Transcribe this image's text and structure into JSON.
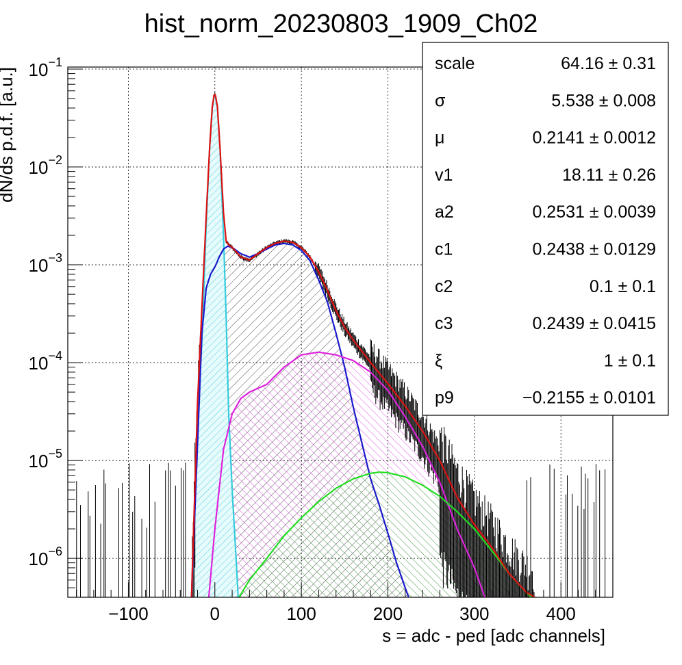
{
  "chart_data": {
    "type": "line",
    "title": "hist_norm_20230803_1909_Ch02",
    "xlabel": "s = adc - ped [adc channels]",
    "ylabel": "dN/ds p.d.f. [a.u.]",
    "xlim": [
      -170,
      460
    ],
    "ylim": [
      4e-07,
      0.105
    ],
    "yscale": "log",
    "grid": true,
    "x_ticks": [
      {
        "value": -100,
        "label": "−100"
      },
      {
        "value": 0,
        "label": "0"
      },
      {
        "value": 100,
        "label": "100"
      },
      {
        "value": 200,
        "label": "200"
      },
      {
        "value": 300,
        "label": "300"
      },
      {
        "value": 400,
        "label": "400"
      }
    ],
    "y_ticks": [
      {
        "value": 0.1,
        "base": "10",
        "exp": "−1"
      },
      {
        "value": 0.01,
        "base": "10",
        "exp": "−2"
      },
      {
        "value": 0.001,
        "base": "10",
        "exp": "−3"
      },
      {
        "value": 0.0001,
        "base": "10",
        "exp": "−4"
      },
      {
        "value": 1e-05,
        "base": "10",
        "exp": "−5"
      },
      {
        "value": 1e-06,
        "base": "10",
        "exp": "−6"
      }
    ],
    "series": [
      {
        "key": "pedestal",
        "color": "#33ccdd",
        "x": [
          -27,
          -20,
          -15,
          -10,
          -6,
          -3,
          -1,
          0,
          1,
          3,
          6,
          10,
          13,
          16,
          20,
          24,
          27
        ],
        "y": [
          4e-07,
          2.6e-05,
          0.00016,
          0.0026,
          0.016,
          0.04,
          0.052,
          0.053,
          0.05,
          0.04,
          0.015,
          0.002,
          0.0003,
          3e-05,
          5e-06,
          1.2e-06,
          4e-07
        ]
      },
      {
        "key": "one_pe",
        "color": "#1a1acc",
        "x": [
          -27,
          -20,
          -15,
          -10,
          -5,
          0,
          5,
          10,
          15,
          20,
          30,
          40,
          50,
          60,
          70,
          80,
          90,
          100,
          110,
          120,
          130,
          140,
          150,
          160,
          170,
          180,
          190,
          200,
          210,
          220,
          224
        ],
        "y": [
          4e-07,
          1.5e-05,
          0.0002,
          0.00058,
          0.0008,
          0.00095,
          0.0012,
          0.00145,
          0.00155,
          0.0015,
          0.0013,
          0.0012,
          0.0013,
          0.00145,
          0.0016,
          0.00165,
          0.0016,
          0.0014,
          0.0011,
          0.0007,
          0.00042,
          0.0002,
          9e-05,
          3.5e-05,
          1.5e-05,
          6.5e-06,
          3.5e-06,
          1.8e-06,
          9e-07,
          5e-07,
          4e-07
        ]
      },
      {
        "key": "two_pe",
        "color": "#dd22dd",
        "x": [
          -7,
          0,
          10,
          20,
          30,
          40,
          60,
          80,
          100,
          120,
          140,
          160,
          180,
          200,
          220,
          240,
          260,
          280,
          300,
          312
        ],
        "y": [
          4e-07,
          2e-06,
          1.3e-05,
          3e-05,
          4.3e-05,
          5e-05,
          6e-05,
          9e-05,
          0.00012,
          0.000128,
          0.00012,
          0.000105,
          8e-05,
          5.2e-05,
          2.8e-05,
          1.4e-05,
          6e-06,
          2e-06,
          8e-07,
          4e-07
        ]
      },
      {
        "key": "three_pe",
        "color": "#22dd22",
        "x": [
          28,
          40,
          60,
          80,
          100,
          120,
          140,
          160,
          180,
          190,
          200,
          220,
          240,
          260,
          280,
          300,
          320,
          340,
          360,
          366
        ],
        "y": [
          4e-07,
          6e-07,
          1e-06,
          1.7e-06,
          2.6e-06,
          3.8e-06,
          5.2e-06,
          6.5e-06,
          7.4e-06,
          7.6e-06,
          7.5e-06,
          6.8e-06,
          5.6e-06,
          4.3e-06,
          3e-06,
          2e-06,
          1.2e-06,
          7e-07,
          4.5e-07,
          4e-07
        ]
      },
      {
        "key": "total_fit",
        "color": "#dd1111",
        "x": [
          -27,
          -20,
          -15,
          -10,
          -6,
          -3,
          -1,
          0,
          1,
          3,
          6,
          10,
          13,
          16,
          20,
          25,
          30,
          40,
          50,
          60,
          70,
          80,
          90,
          100,
          110,
          120,
          130,
          140,
          150,
          160,
          180,
          200,
          220,
          240,
          260,
          280,
          300,
          320,
          340,
          360,
          370
        ],
        "y": [
          4e-07,
          4e-05,
          0.00036,
          0.0032,
          0.016,
          0.041,
          0.054,
          0.055,
          0.052,
          0.041,
          0.0155,
          0.0034,
          0.00175,
          0.0016,
          0.0015,
          0.00135,
          0.0012,
          0.00112,
          0.0013,
          0.0015,
          0.00166,
          0.00175,
          0.0017,
          0.0015,
          0.0012,
          0.00085,
          0.00055,
          0.00034,
          0.00023,
          0.00017,
          0.0001,
          6.1e-05,
          3.6e-05,
          2e-05,
          1e-05,
          4.2e-06,
          2.2e-06,
          1.3e-06,
          7e-07,
          4.5e-07,
          4e-07
        ]
      }
    ]
  },
  "stats": {
    "rows": [
      {
        "name": "scale",
        "value": "64.16 ± 0.31"
      },
      {
        "name": "σ",
        "value": "5.538 ± 0.008"
      },
      {
        "name": "μ",
        "value": "0.2141 ± 0.0012"
      },
      {
        "name": "v1",
        "value": "18.11 ± 0.26"
      },
      {
        "name": "a2",
        "value": "0.2531 ± 0.0039"
      },
      {
        "name": "c1",
        "value": "0.2438 ± 0.0129"
      },
      {
        "name": "c2",
        "value": "0.1 ± 0.1"
      },
      {
        "name": "c3",
        "value": "0.2439 ± 0.0415"
      },
      {
        "name": "ξ",
        "value": "1 ± 0.1"
      },
      {
        "name": "p9",
        "value": "−0.2155 ± 0.0101"
      }
    ]
  }
}
